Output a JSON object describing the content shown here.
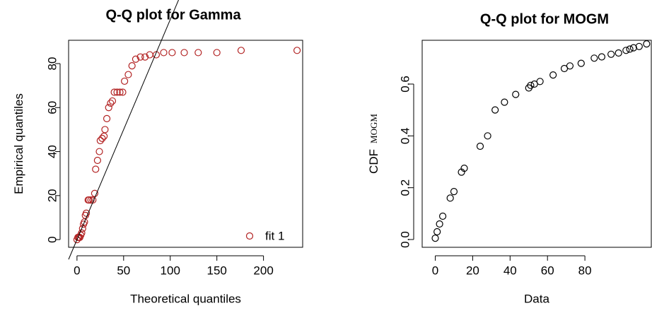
{
  "chart_data": [
    {
      "type": "scatter",
      "title": "Q-Q plot for Gamma",
      "xlabel": "Theoretical quantiles",
      "ylabel": "Empirical quantiles",
      "color": "#b22222",
      "xlim": [
        -9,
        242
      ],
      "ylim": [
        -3.5,
        90.6
      ],
      "xticks": [
        0,
        50,
        100,
        150,
        200
      ],
      "yticks": [
        0,
        20,
        40,
        60,
        80
      ],
      "series": [
        {
          "name": "fit 1",
          "color": "#b22222",
          "x": [
            0,
            1,
            2,
            3,
            4,
            5,
            6,
            7,
            8,
            9,
            10,
            12,
            13,
            15,
            17,
            19,
            20,
            22,
            24,
            25,
            27,
            29,
            30,
            32,
            34,
            36,
            38,
            40,
            43,
            46,
            49,
            51,
            55,
            59,
            63,
            68,
            73,
            78,
            85,
            93,
            102,
            115,
            130,
            150,
            176,
            236
          ],
          "values": [
            0,
            1,
            1,
            1,
            2,
            3,
            5,
            7,
            8,
            11,
            12,
            18,
            18,
            18,
            18,
            21,
            32,
            36,
            40,
            45,
            46,
            47,
            50,
            55,
            60,
            62,
            63,
            67,
            67,
            67,
            67,
            72,
            75,
            79,
            82,
            83,
            83,
            84,
            84,
            85,
            85,
            85,
            85,
            85,
            86,
            86
          ]
        }
      ],
      "abline": {
        "intercept": 0,
        "slope": 1
      },
      "line_color": "#000000",
      "legend": "bottomright"
    },
    {
      "type": "scatter",
      "title": "Q-Q plot for MOGM",
      "xlabel": "Data",
      "ylabel": "CDF",
      "ylabel_subscript": "MOGM",
      "color": "#000000",
      "xlim": [
        -7,
        115.5
      ],
      "ylim": [
        -0.03,
        0.769
      ],
      "xticks": [
        0,
        20,
        40,
        60,
        80
      ],
      "yticks": [
        {
          "value": 0,
          "label": "0.0"
        },
        0.2,
        0.4,
        0.6
      ],
      "series": [
        {
          "color": "#000000",
          "x": [
            0,
            1,
            2.3,
            4,
            8,
            10,
            14,
            15.5,
            24,
            28,
            32,
            37,
            43,
            50,
            51,
            53,
            56,
            63,
            69,
            72,
            78,
            85,
            89,
            94,
            98,
            102,
            104,
            106,
            109,
            113
          ],
          "values": [
            0.005,
            0.03,
            0.06,
            0.09,
            0.16,
            0.185,
            0.26,
            0.275,
            0.36,
            0.4,
            0.5,
            0.53,
            0.56,
            0.585,
            0.595,
            0.6,
            0.61,
            0.635,
            0.66,
            0.67,
            0.68,
            0.7,
            0.705,
            0.715,
            0.72,
            0.73,
            0.735,
            0.74,
            0.745,
            0.755
          ]
        }
      ]
    }
  ]
}
